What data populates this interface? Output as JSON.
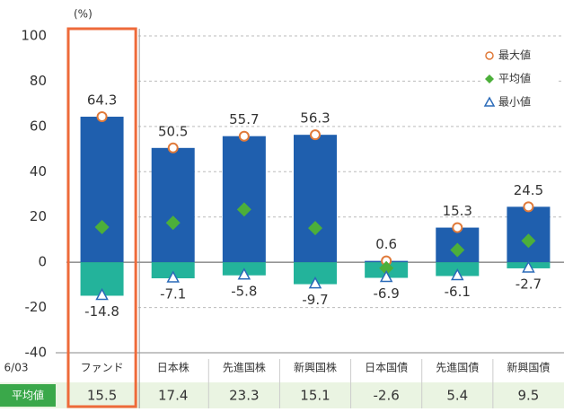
{
  "chart_data": {
    "type": "range-bar",
    "y_unit": "(%)",
    "x_edge_label": "6/03",
    "categories": [
      "ファンド",
      "日本株",
      "先進国株",
      "新興国株",
      "日本国債",
      "先進国債",
      "新興国債"
    ],
    "series": [
      {
        "name": "最大値",
        "color": "#e07a3a",
        "values": [
          64.3,
          50.5,
          55.7,
          56.3,
          0.6,
          15.3,
          24.5
        ]
      },
      {
        "name": "平均値",
        "color": "#4caf3a",
        "values": [
          15.5,
          17.4,
          23.3,
          15.1,
          -2.6,
          5.4,
          9.5
        ]
      },
      {
        "name": "最小値",
        "color": "#2a6ab8",
        "values": [
          -14.8,
          -7.1,
          -5.8,
          -9.7,
          -6.9,
          -6.1,
          -2.7
        ]
      }
    ],
    "positive_color": "#1f5fae",
    "negative_color": "#23b39b",
    "table_row_label": "平均値",
    "ylim": [
      -40,
      100
    ],
    "yticks": [
      -40,
      -20,
      0,
      20,
      40,
      60,
      80,
      100
    ],
    "grid": true,
    "highlight_color": "#ee6a3a"
  }
}
